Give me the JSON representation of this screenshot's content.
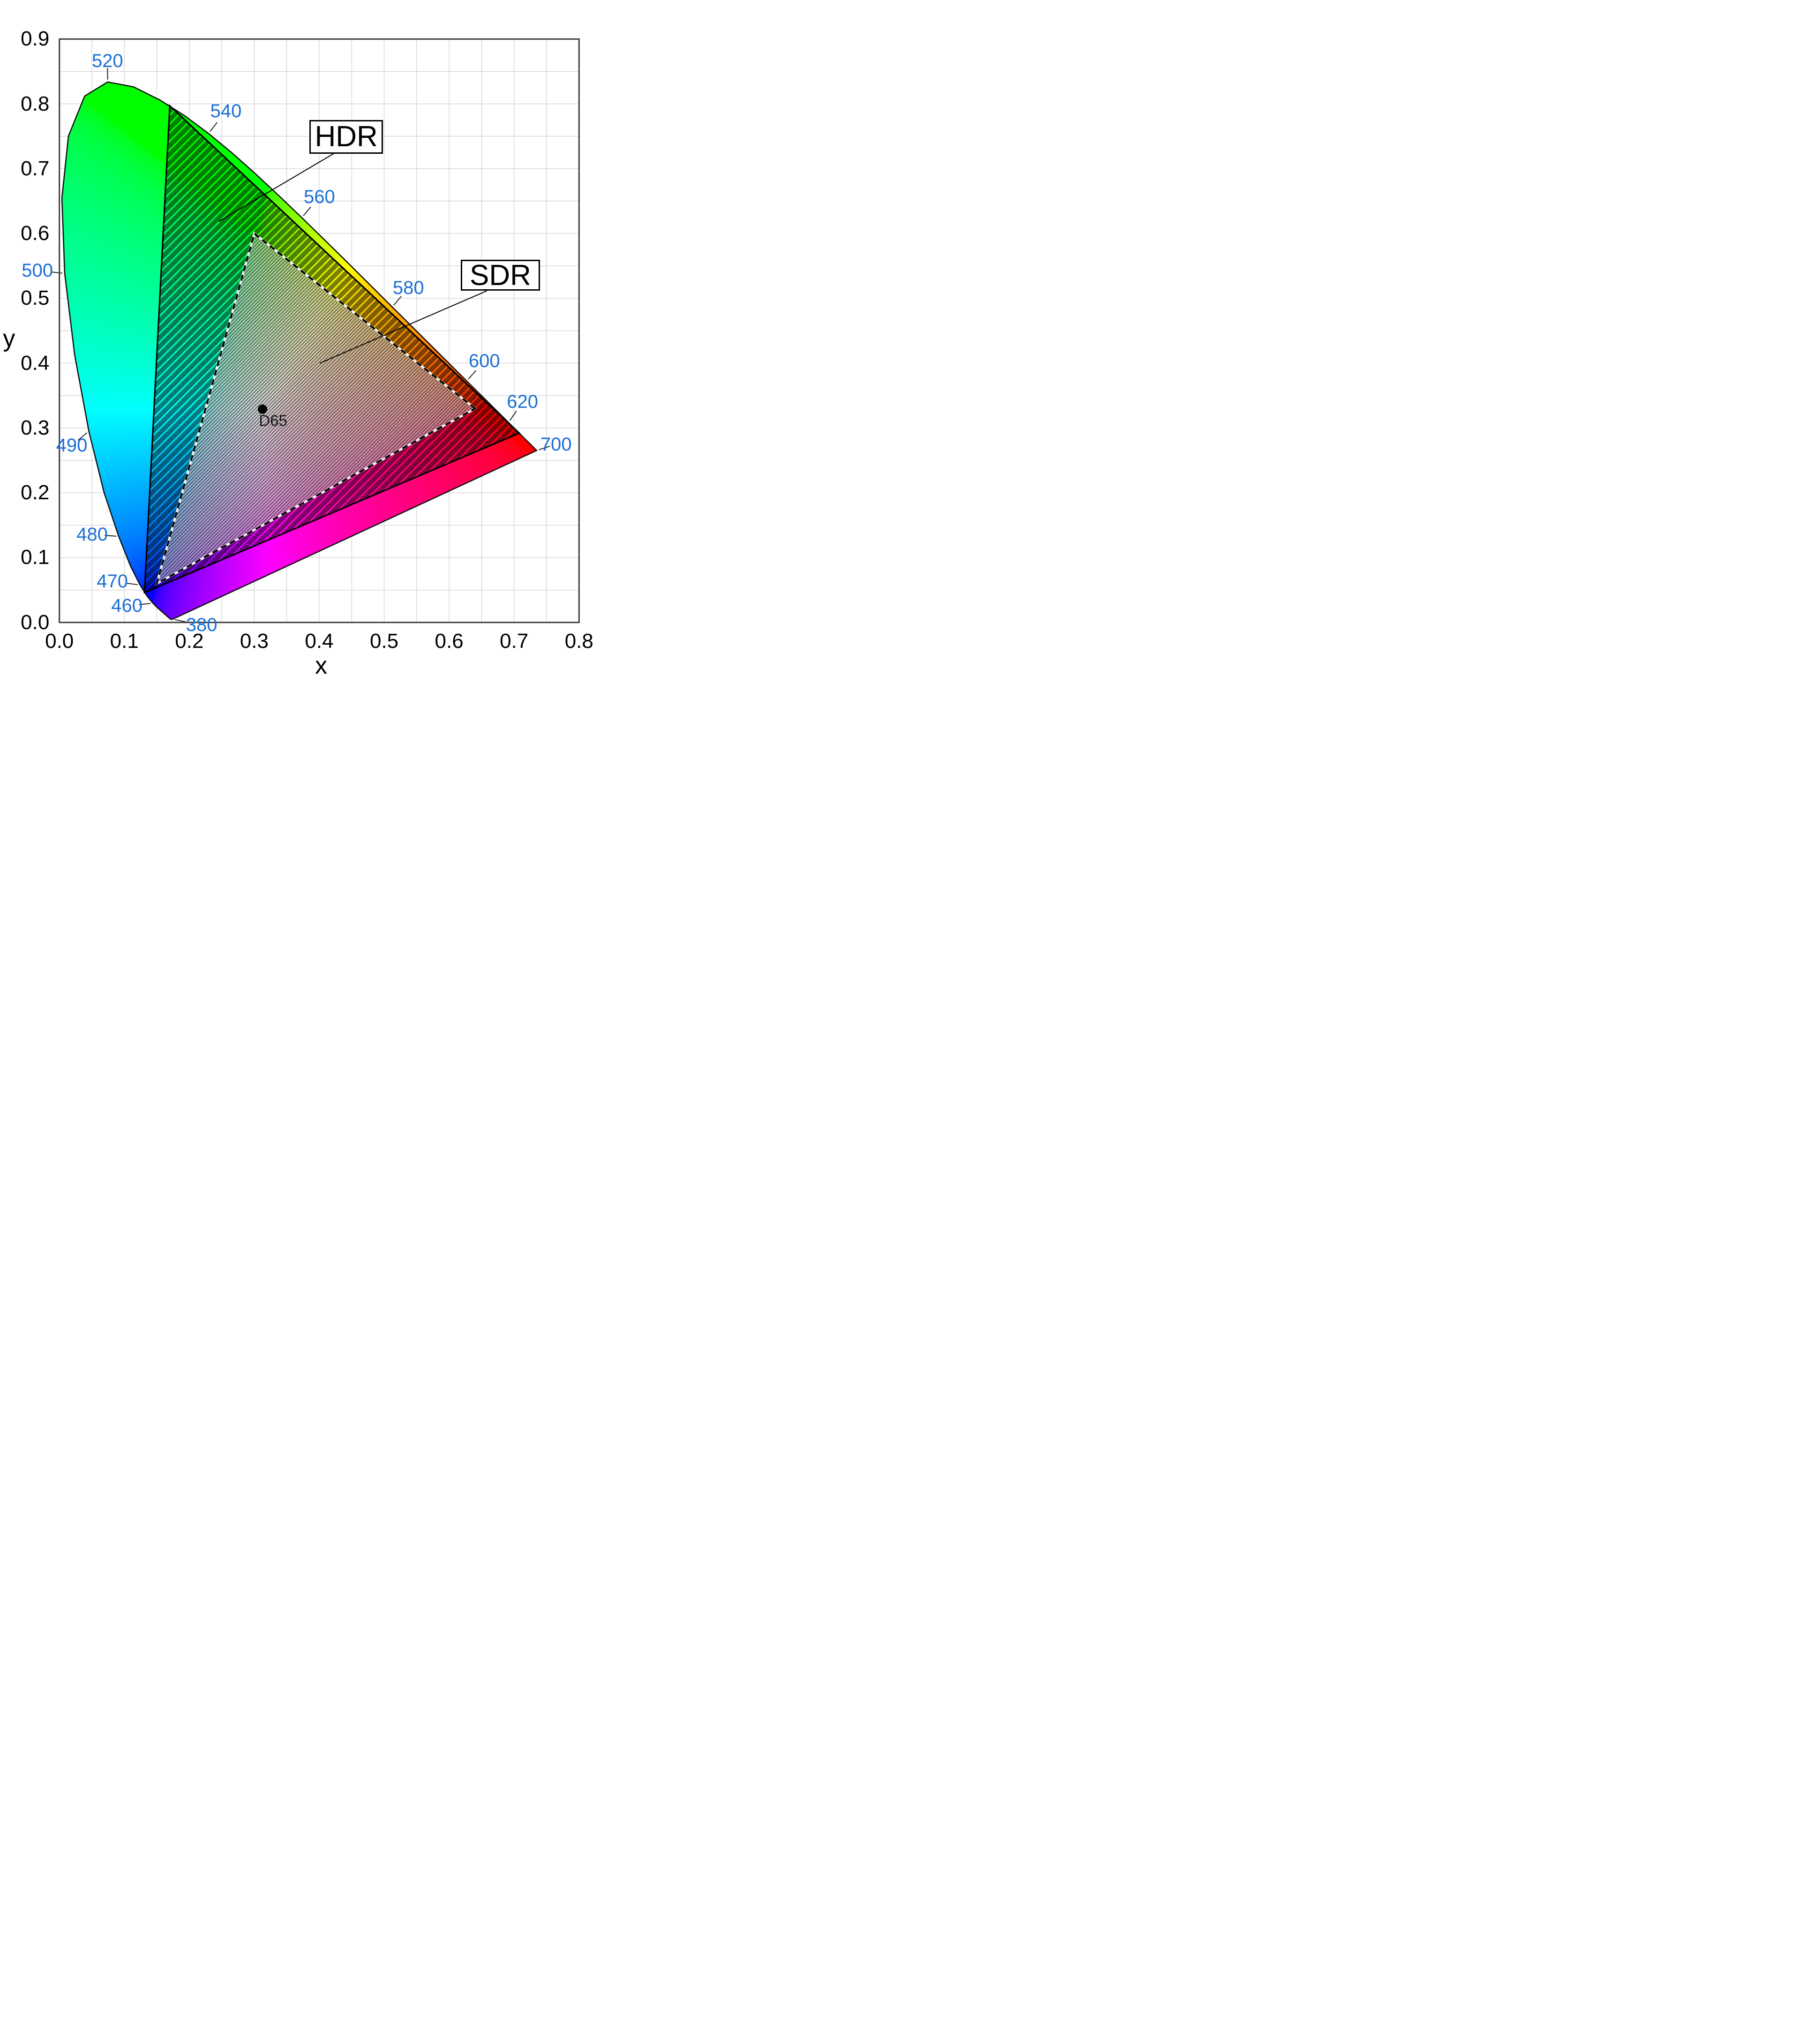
{
  "chart_data": {
    "type": "area",
    "subtype": "CIE 1931 xy chromaticity diagram with display gamut comparison",
    "title": "",
    "xlabel": "x",
    "ylabel": "y",
    "xlim": [
      0.0,
      0.8
    ],
    "ylim": [
      0.0,
      0.9
    ],
    "x_ticks": [
      "0.0",
      "0.1",
      "0.2",
      "0.3",
      "0.4",
      "0.5",
      "0.6",
      "0.7",
      "0.8"
    ],
    "y_ticks": [
      "0.0",
      "0.1",
      "0.2",
      "0.3",
      "0.4",
      "0.5",
      "0.6",
      "0.7",
      "0.8",
      "0.9"
    ],
    "grid": true,
    "grid_step": 0.05,
    "spectral_locus": {
      "wavelength_nm": [
        380,
        385,
        390,
        395,
        400,
        405,
        410,
        415,
        420,
        425,
        430,
        435,
        440,
        445,
        450,
        455,
        460,
        465,
        470,
        475,
        480,
        485,
        490,
        495,
        500,
        505,
        510,
        515,
        520,
        525,
        530,
        535,
        540,
        545,
        550,
        555,
        560,
        565,
        570,
        575,
        580,
        585,
        590,
        595,
        600,
        605,
        610,
        615,
        620,
        625,
        630,
        635,
        640,
        645,
        650,
        655,
        660,
        665,
        670,
        675,
        680,
        685,
        690,
        695,
        700
      ],
      "x": [
        0.1741,
        0.174,
        0.1738,
        0.1736,
        0.1733,
        0.173,
        0.1726,
        0.1721,
        0.1714,
        0.1703,
        0.1689,
        0.1669,
        0.1644,
        0.1611,
        0.1566,
        0.151,
        0.144,
        0.1355,
        0.1241,
        0.1096,
        0.0913,
        0.0687,
        0.0454,
        0.0235,
        0.0082,
        0.0039,
        0.0139,
        0.0389,
        0.0743,
        0.1142,
        0.1547,
        0.1929,
        0.2296,
        0.2658,
        0.3016,
        0.3373,
        0.3731,
        0.4087,
        0.4441,
        0.4788,
        0.5125,
        0.5448,
        0.5752,
        0.6029,
        0.627,
        0.6482,
        0.6658,
        0.6801,
        0.6915,
        0.7006,
        0.7079,
        0.714,
        0.719,
        0.723,
        0.726,
        0.7283,
        0.73,
        0.7311,
        0.732,
        0.7327,
        0.7334,
        0.734,
        0.7344,
        0.7346,
        0.7347
      ],
      "y": [
        0.005,
        0.005,
        0.0049,
        0.0049,
        0.0048,
        0.0048,
        0.0048,
        0.0048,
        0.0051,
        0.0058,
        0.0069,
        0.0086,
        0.0109,
        0.0138,
        0.0177,
        0.0227,
        0.0297,
        0.0399,
        0.0578,
        0.0868,
        0.1327,
        0.2007,
        0.295,
        0.4127,
        0.5384,
        0.6548,
        0.7502,
        0.812,
        0.8338,
        0.8262,
        0.8059,
        0.7816,
        0.7543,
        0.7243,
        0.6923,
        0.6589,
        0.6245,
        0.5896,
        0.5547,
        0.5202,
        0.4866,
        0.4544,
        0.4242,
        0.3965,
        0.3725,
        0.3514,
        0.334,
        0.3197,
        0.3083,
        0.2993,
        0.292,
        0.2859,
        0.2809,
        0.277,
        0.274,
        0.2717,
        0.27,
        0.2689,
        0.268,
        0.2673,
        0.2666,
        0.266,
        0.2656,
        0.2654,
        0.2653
      ]
    },
    "wavelength_labels": [
      {
        "text": "520",
        "locus_x": 0.0743,
        "locus_y": 0.8338,
        "label_x": 0.074,
        "label_y": 0.866
      },
      {
        "text": "540",
        "locus_x": 0.2296,
        "locus_y": 0.7543,
        "label_x": 0.2564,
        "label_y": 0.789
      },
      {
        "text": "560",
        "locus_x": 0.3731,
        "locus_y": 0.6245,
        "label_x": 0.4003,
        "label_y": 0.6565
      },
      {
        "text": "580",
        "locus_x": 0.5125,
        "locus_y": 0.4866,
        "label_x": 0.5373,
        "label_y": 0.5162
      },
      {
        "text": "600",
        "locus_x": 0.627,
        "locus_y": 0.3725,
        "label_x": 0.6542,
        "label_y": 0.4031
      },
      {
        "text": "620",
        "locus_x": 0.6915,
        "locus_y": 0.3083,
        "label_x": 0.7129,
        "label_y": 0.3402
      },
      {
        "text": "700",
        "locus_x": 0.7347,
        "locus_y": 0.2653,
        "label_x": 0.7646,
        "label_y": 0.2748
      },
      {
        "text": "500",
        "locus_x": 0.0082,
        "locus_y": 0.5384,
        "label_x": -0.034,
        "label_y": 0.543
      },
      {
        "text": "490",
        "locus_x": 0.0454,
        "locus_y": 0.295,
        "label_x": 0.019,
        "label_y": 0.273
      },
      {
        "text": "480",
        "locus_x": 0.0913,
        "locus_y": 0.1327,
        "label_x": 0.0505,
        "label_y": 0.136
      },
      {
        "text": "470",
        "locus_x": 0.1241,
        "locus_y": 0.0578,
        "label_x": 0.0815,
        "label_y": 0.0632
      },
      {
        "text": "460",
        "locus_x": 0.144,
        "locus_y": 0.0297,
        "label_x": 0.1039,
        "label_y": 0.0256
      },
      {
        "text": "380",
        "locus_x": 0.1741,
        "locus_y": 0.005,
        "label_x": 0.219,
        "label_y": -0.004
      }
    ],
    "gamuts": [
      {
        "name": "HDR",
        "red": [
          0.708,
          0.292
        ],
        "green": [
          0.17,
          0.797
        ],
        "blue": [
          0.131,
          0.046
        ],
        "hatch": "wide-diagonal",
        "outline": "solid"
      },
      {
        "name": "SDR",
        "red": [
          0.64,
          0.33
        ],
        "green": [
          0.3,
          0.6
        ],
        "blue": [
          0.15,
          0.06
        ],
        "hatch": "fine-diagonal",
        "outline": "dashed",
        "overlay": "whitened"
      }
    ],
    "white_point": {
      "label": "D65",
      "x": 0.3127,
      "y": 0.329,
      "label_x": 0.329,
      "label_y": 0.3115
    },
    "annotations": [
      {
        "label": "HDR",
        "box": {
          "x1": 0.3848,
          "y1": 0.7233,
          "x2": 0.4984,
          "y2": 0.7754
        },
        "leader_end": {
          "x": 0.2453,
          "y": 0.6185
        }
      },
      {
        "label": "SDR",
        "box": {
          "x1": 0.6179,
          "y1": 0.5116,
          "x2": 0.7399,
          "y2": 0.5596
        },
        "leader_end": {
          "x": 0.401,
          "y": 0.4
        }
      }
    ],
    "colors": {
      "wavelength_labels": "#1a6fd6",
      "tick_labels": "#000000",
      "grid": "#cbcbcb",
      "axis_frame": "#3d3d3d",
      "hatch": "#000000",
      "background": "#ffffff"
    }
  }
}
